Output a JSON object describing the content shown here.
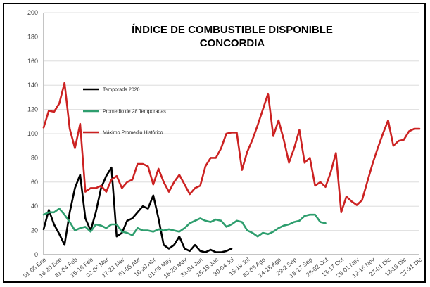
{
  "chart_data": {
    "type": "line",
    "title_line1": "ÍNDICE DE COMBUSTIBLE DISPONIBLE",
    "title_line2": "CONCORDIA",
    "ylim": [
      0,
      200
    ],
    "yticks": [
      0,
      20,
      40,
      60,
      80,
      100,
      120,
      140,
      160,
      180,
      200
    ],
    "x_labels": [
      "01-05 Ene",
      "16-20 Ene",
      "31-04 Feb",
      "15-19 Feb",
      "02-06 Mar",
      "17-21 Mar",
      "01-05 Abr",
      "16-20 Abr",
      "01-05 May",
      "16-20 May",
      "31-04 Jun",
      "15-19 Jun",
      "30-04 Jul",
      "15-19 Jul",
      "30-03 Ago",
      "14-18 Ago",
      "29-2 Sep",
      "13-17 Sep",
      "28-02 Oct",
      "13-17 Oct",
      "28-01 Nov",
      "12-16 Nov",
      "27-01 Dic",
      "12-16 Dic",
      "27-31 Dic"
    ],
    "n_points": 73,
    "legend_position": "upper-left",
    "series": [
      {
        "name": "Temporada 2020",
        "color": "#000000",
        "values": [
          21,
          37,
          25,
          17,
          8,
          35,
          55,
          66,
          30,
          20,
          35,
          55,
          65,
          72,
          15,
          18,
          28,
          30,
          35,
          40,
          38,
          49,
          30,
          8,
          5,
          8,
          15,
          5,
          3,
          8,
          3,
          2,
          4,
          2,
          2,
          3,
          5
        ]
      },
      {
        "name": "Promedio de 28 Temporadas",
        "color": "#2e9e6e",
        "values": [
          33,
          35,
          35,
          38,
          33,
          27,
          20,
          22,
          23,
          19,
          25,
          24,
          22,
          25,
          25,
          19,
          18,
          16,
          22,
          20,
          20,
          19,
          21,
          20,
          21,
          20,
          19,
          22,
          26,
          28,
          30,
          28,
          27,
          29,
          28,
          23,
          25,
          28,
          27,
          20,
          18,
          15,
          18,
          17,
          19,
          22,
          24,
          25,
          27,
          28,
          32,
          33,
          33,
          27,
          26
        ]
      },
      {
        "name": "Máximo Promedio Histórico",
        "color": "#cc2222",
        "values": [
          105,
          119,
          118,
          125,
          142,
          104,
          88,
          108,
          52,
          55,
          55,
          57,
          52,
          62,
          65,
          55,
          60,
          62,
          75,
          75,
          73,
          58,
          71,
          60,
          52,
          60,
          66,
          58,
          50,
          55,
          57,
          73,
          80,
          80,
          88,
          100,
          101,
          101,
          70,
          85,
          95,
          107,
          120,
          133,
          98,
          111,
          95,
          76,
          88,
          103,
          76,
          80,
          57,
          60,
          56,
          68,
          84,
          35,
          48,
          44,
          41,
          45,
          60,
          75,
          88,
          100,
          111,
          90,
          94,
          95,
          102,
          104,
          104
        ]
      }
    ]
  }
}
